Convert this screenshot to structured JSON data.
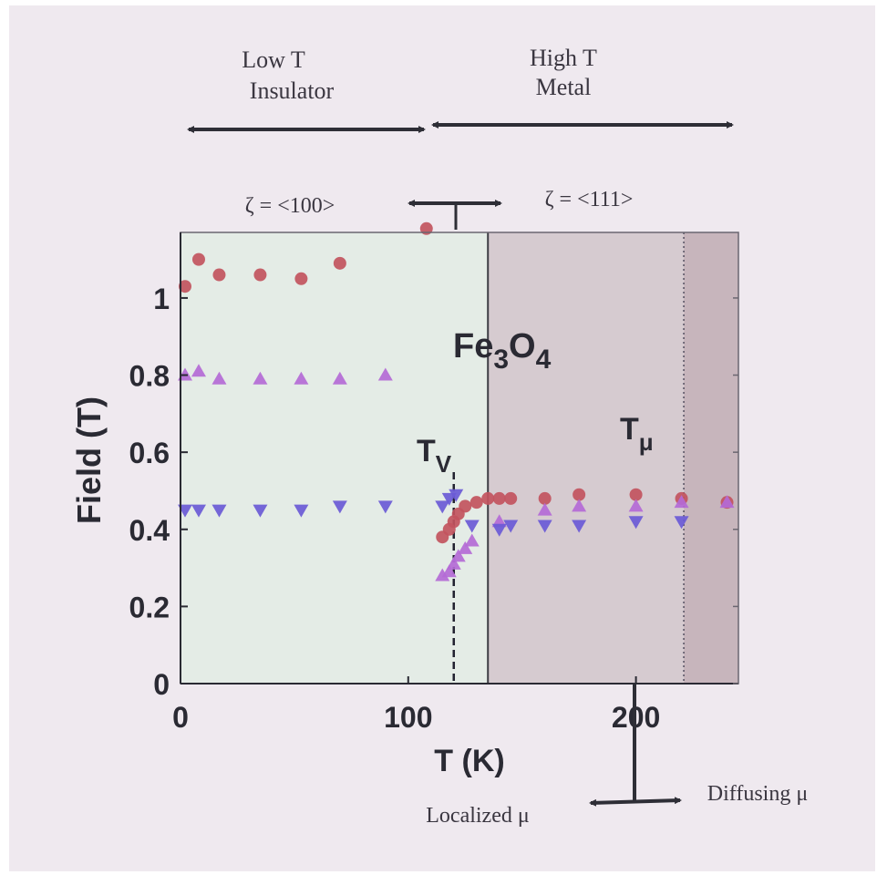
{
  "annotations": {
    "low_t_line1": "Low T",
    "low_t_line2": "Insulator",
    "high_t_line1": "High T",
    "high_t_line2": "Metal",
    "zeta_low": "ζ = <100>",
    "zeta_high": "ζ = <111>",
    "localized": "Localized μ",
    "diffusing": "Diffusing μ"
  },
  "chart_data": {
    "type": "scatter",
    "title": "",
    "xlabel": "T (K)",
    "ylabel": "Field (T)",
    "xlim": [
      0,
      245
    ],
    "ylim": [
      0,
      1.17
    ],
    "xticks": [
      0,
      100,
      200
    ],
    "xtick_labels": [
      "0",
      "100",
      "200"
    ],
    "yticks": [
      0,
      0.2,
      0.4,
      0.6,
      0.8,
      1
    ],
    "ytick_labels": [
      "0",
      "0.2",
      "0.4",
      "0.6",
      "0.8",
      "1"
    ],
    "grid": false,
    "compound": "Fe3O4",
    "compound_main": "Fe",
    "compound_sub1": "3",
    "compound_mid": "O",
    "compound_sub2": "4",
    "markers": [
      {
        "label_main": "T",
        "label_sub": "V",
        "x": 120,
        "style": "dashed"
      },
      {
        "label_main": "T",
        "label_sub": "μ",
        "x": 221,
        "style": "dotted"
      }
    ],
    "phase_boundary_x": 135,
    "series": [
      {
        "marker": "circle",
        "color": "#c2545e",
        "x": [
          2,
          8,
          17,
          35,
          53,
          70,
          108,
          115,
          118,
          120,
          122,
          125,
          130,
          135,
          140,
          145,
          160,
          175,
          200,
          220,
          240
        ],
        "y": [
          1.03,
          1.1,
          1.06,
          1.06,
          1.05,
          1.09,
          1.18,
          0.38,
          0.4,
          0.42,
          0.44,
          0.46,
          0.47,
          0.48,
          0.48,
          0.48,
          0.48,
          0.49,
          0.49,
          0.48,
          0.47
        ]
      },
      {
        "marker": "triangle-up",
        "color": "#b46ad6",
        "x": [
          2,
          8,
          17,
          35,
          53,
          70,
          90,
          115,
          118,
          120,
          122,
          125,
          128,
          140,
          160,
          175,
          200,
          220,
          240
        ],
        "y": [
          0.8,
          0.81,
          0.79,
          0.79,
          0.79,
          0.79,
          0.8,
          0.28,
          0.29,
          0.31,
          0.33,
          0.35,
          0.37,
          0.42,
          0.45,
          0.46,
          0.46,
          0.47,
          0.47
        ]
      },
      {
        "marker": "triangle-down",
        "color": "#6a5ad6",
        "x": [
          2,
          8,
          17,
          35,
          53,
          70,
          90,
          115,
          118,
          121,
          128,
          140,
          145,
          160,
          175,
          200,
          220
        ],
        "y": [
          0.45,
          0.45,
          0.45,
          0.45,
          0.45,
          0.46,
          0.46,
          0.46,
          0.48,
          0.49,
          0.41,
          0.4,
          0.41,
          0.41,
          0.41,
          0.42,
          0.42
        ]
      }
    ]
  }
}
